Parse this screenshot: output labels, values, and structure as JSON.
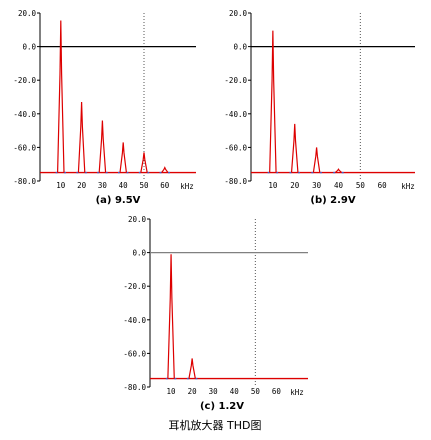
{
  "figure_title": "耳机放大器 THD图",
  "chart_data": [
    {
      "type": "line",
      "caption": "(a) 9.5V",
      "xlabel": "kHz",
      "x_ticks": [
        "10",
        "20",
        "30",
        "40",
        "50",
        "60"
      ],
      "y_ticks": [
        "20.0",
        "0.0",
        "-20.0",
        "-40.0",
        "-60.0",
        "-80.0"
      ],
      "xlim": [
        0,
        75
      ],
      "ylim": [
        -80,
        20
      ],
      "grid": "dotted line at 50 kHz",
      "noise_floor": -75,
      "reference_line": 0,
      "series": [
        {
          "values": [
            [
              10,
              15.5
            ],
            [
              20,
              -33
            ],
            [
              30,
              -44
            ],
            [
              40,
              -57
            ],
            [
              50,
              -63
            ],
            [
              60,
              -72
            ]
          ]
        }
      ],
      "colors": {
        "series": "#dd0000",
        "floor": "#dd0000",
        "reference": "#000000",
        "baseline_marks": "#3a5fd0"
      }
    },
    {
      "type": "line",
      "caption": "(b) 2.9V",
      "xlabel": "kHz",
      "x_ticks": [
        "10",
        "20",
        "30",
        "40",
        "50",
        "60"
      ],
      "y_ticks": [
        "20.0",
        "0.0",
        "-20.0",
        "-40.0",
        "-60.0",
        "-80.0"
      ],
      "xlim": [
        0,
        75
      ],
      "ylim": [
        -80,
        20
      ],
      "grid": "dotted line at 50 kHz",
      "noise_floor": -75,
      "reference_line": 0,
      "series": [
        {
          "values": [
            [
              10,
              9.5
            ],
            [
              20,
              -46
            ],
            [
              30,
              -60
            ],
            [
              40,
              -73
            ]
          ]
        }
      ],
      "colors": {
        "series": "#dd0000",
        "floor": "#dd0000",
        "reference": "#000000",
        "baseline_marks": "#3a5fd0"
      }
    },
    {
      "type": "line",
      "caption": "(c) 1.2V",
      "xlabel": "kHz",
      "x_ticks": [
        "10",
        "20",
        "30",
        "40",
        "50",
        "60"
      ],
      "y_ticks": [
        "20.0",
        "0.0",
        "-20.0",
        "-40.0",
        "-60.0",
        "-80.0"
      ],
      "xlim": [
        0,
        75
      ],
      "ylim": [
        -80,
        20
      ],
      "grid": "dotted line at 50 kHz",
      "noise_floor": -75,
      "reference_line": 0,
      "series": [
        {
          "values": [
            [
              10,
              -1
            ],
            [
              20,
              -63
            ]
          ]
        }
      ],
      "colors": {
        "series": "#dd0000",
        "floor": "#dd0000",
        "reference": "#808080",
        "baseline_marks": "#3a5fd0"
      }
    }
  ]
}
